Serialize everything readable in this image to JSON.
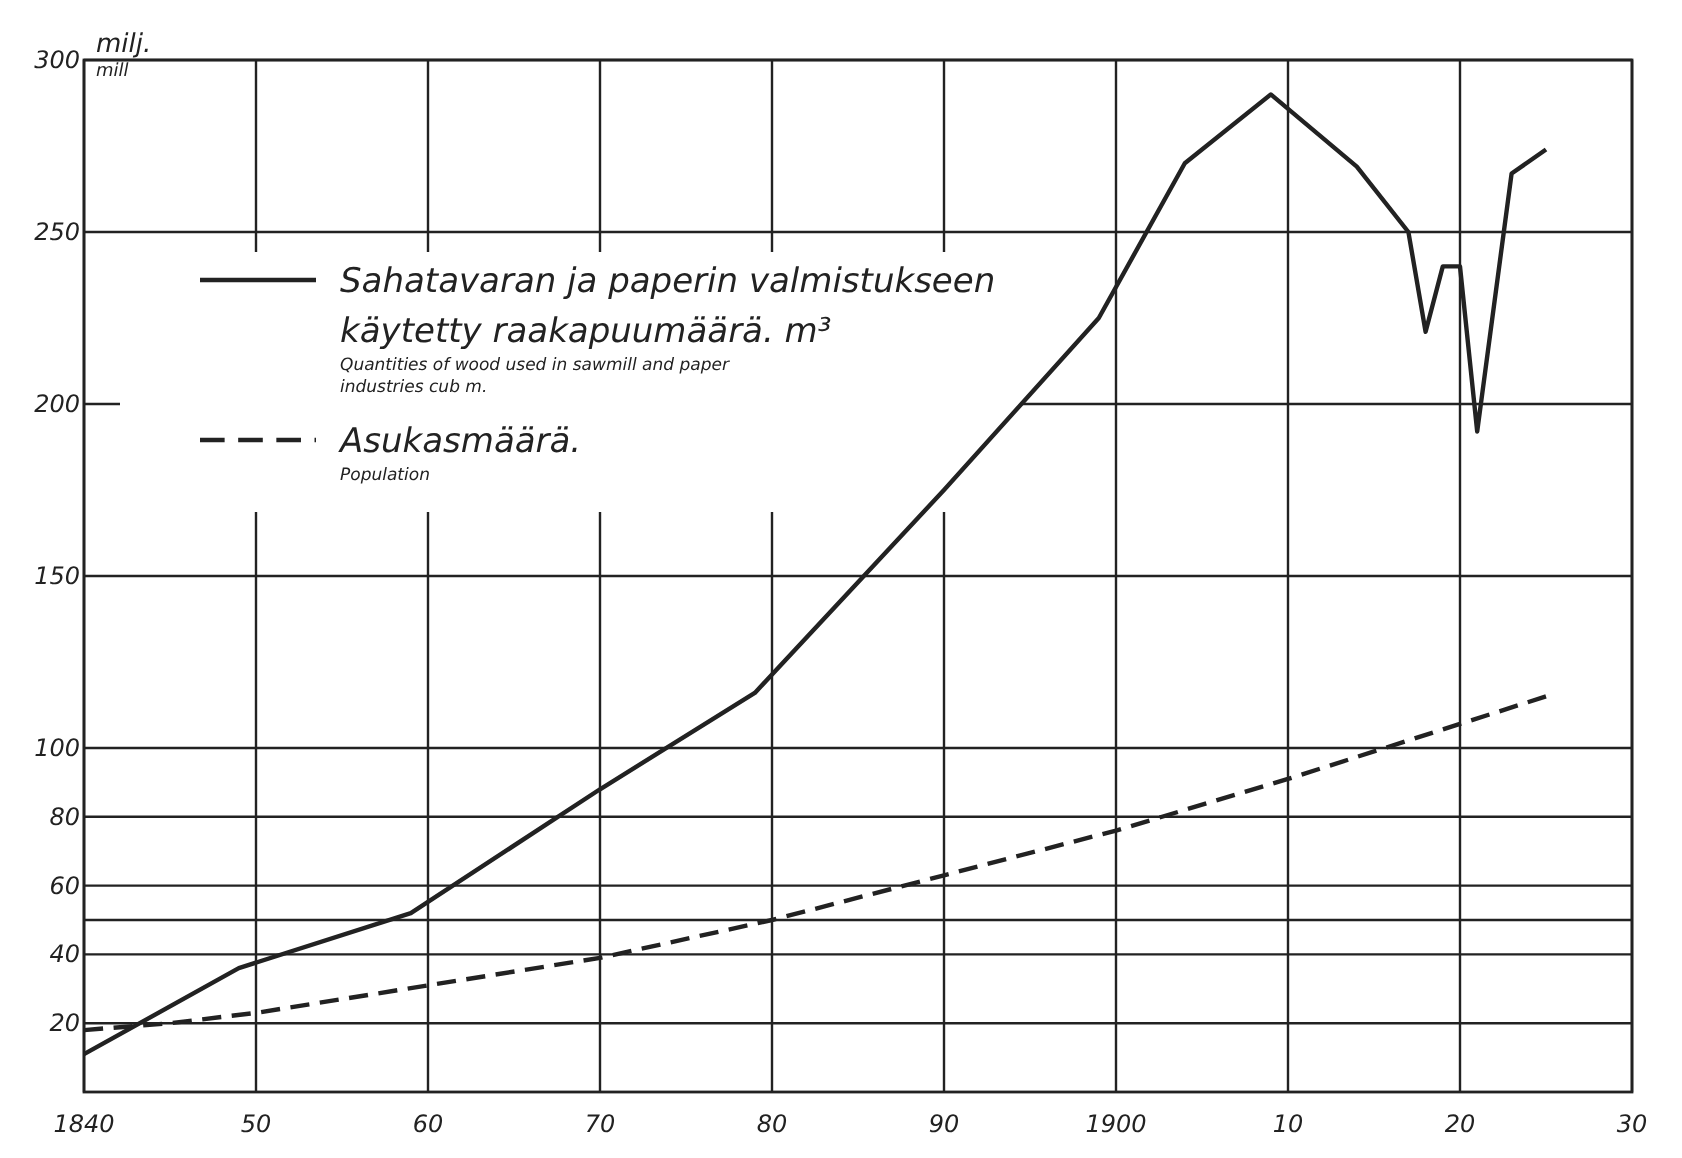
{
  "chart_data": {
    "type": "line",
    "ylabel": "milj.\nmill",
    "xlim": [
      1840,
      1930
    ],
    "ylim": [
      0,
      300
    ],
    "xticks": [
      1840,
      {
        "value": 1850,
        "label": "50"
      },
      {
        "value": 1860,
        "label": "60"
      },
      {
        "value": 1870,
        "label": "70"
      },
      {
        "value": 1880,
        "label": "80"
      },
      {
        "value": 1890,
        "label": "90"
      },
      1900,
      {
        "value": 1910,
        "label": "10"
      },
      {
        "value": 1920,
        "label": "20"
      },
      {
        "value": 1930,
        "label": "30"
      }
    ],
    "yticks": [
      20,
      40,
      60,
      80,
      100,
      {
        "value": 50,
        "label": null
      },
      150,
      200,
      250,
      300
    ],
    "grid": true,
    "legend": "top left",
    "series": [
      {
        "name": "Sahatavaran ja paperin valmistukseen\nkäytetty raakapuumäärä. m³",
        "color": "#222222",
        "line_style": "solid",
        "x": [
          1840,
          1849,
          1859,
          1870,
          1879,
          1890,
          1899,
          1904,
          1909,
          1914,
          1917,
          1918,
          1919,
          1920,
          1921,
          1923,
          1925
        ],
        "values": [
          11,
          36,
          52,
          88,
          116,
          175,
          225,
          270,
          290,
          269,
          250,
          221,
          240,
          240,
          192,
          267,
          274
        ]
      },
      {
        "name": "Asukasmäärä.",
        "color": "#222222",
        "line_style": "dashed",
        "x": [
          1840,
          1845,
          1850,
          1860,
          1870,
          1880,
          1890,
          1900,
          1910,
          1920,
          1925
        ],
        "values": [
          18,
          20,
          23,
          31,
          39,
          50,
          63,
          76,
          91,
          107,
          115
        ]
      }
    ],
    "annotations": [
      "Quantities of wood used in sawmill and paper\nindustries cub m.",
      "Population"
    ]
  }
}
